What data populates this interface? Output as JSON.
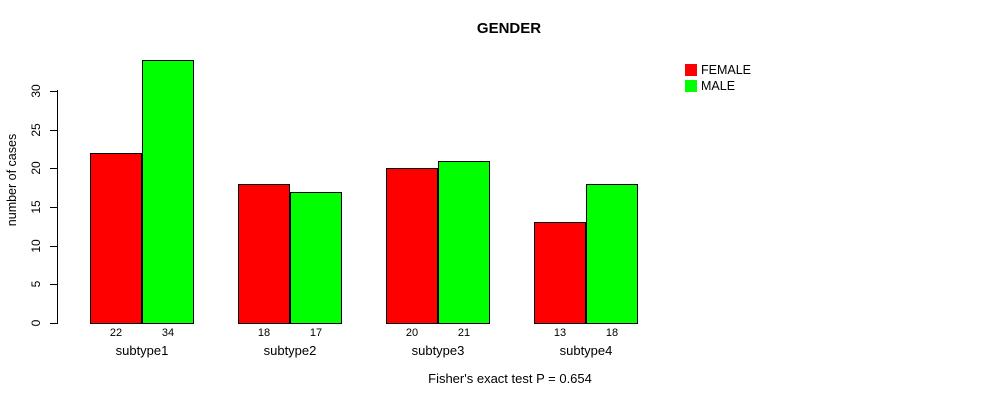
{
  "chart": {
    "title": "GENDER",
    "ylabel": "number of cases",
    "footnote": "Fisher's exact test P = 0.654"
  },
  "chart_data": {
    "type": "bar",
    "title": "GENDER",
    "xlabel": "",
    "ylabel": "number of cases",
    "categories": [
      "subtype1",
      "subtype2",
      "subtype3",
      "subtype4"
    ],
    "series": [
      {
        "name": "FEMALE",
        "color": "#ff0000",
        "values": [
          22,
          18,
          20,
          13
        ]
      },
      {
        "name": "MALE",
        "color": "#00ff00",
        "values": [
          34,
          17,
          21,
          18
        ]
      }
    ],
    "bar_value_labels": [
      [
        "22",
        "34"
      ],
      [
        "18",
        "17"
      ],
      [
        "20",
        "21"
      ],
      [
        "13",
        "18"
      ]
    ],
    "ylim": [
      0,
      30
    ],
    "yticks": [
      0,
      5,
      10,
      15,
      20,
      25,
      30
    ],
    "grid": false,
    "legend_position": "top-right",
    "annotation": "Fisher's exact test P = 0.654"
  }
}
